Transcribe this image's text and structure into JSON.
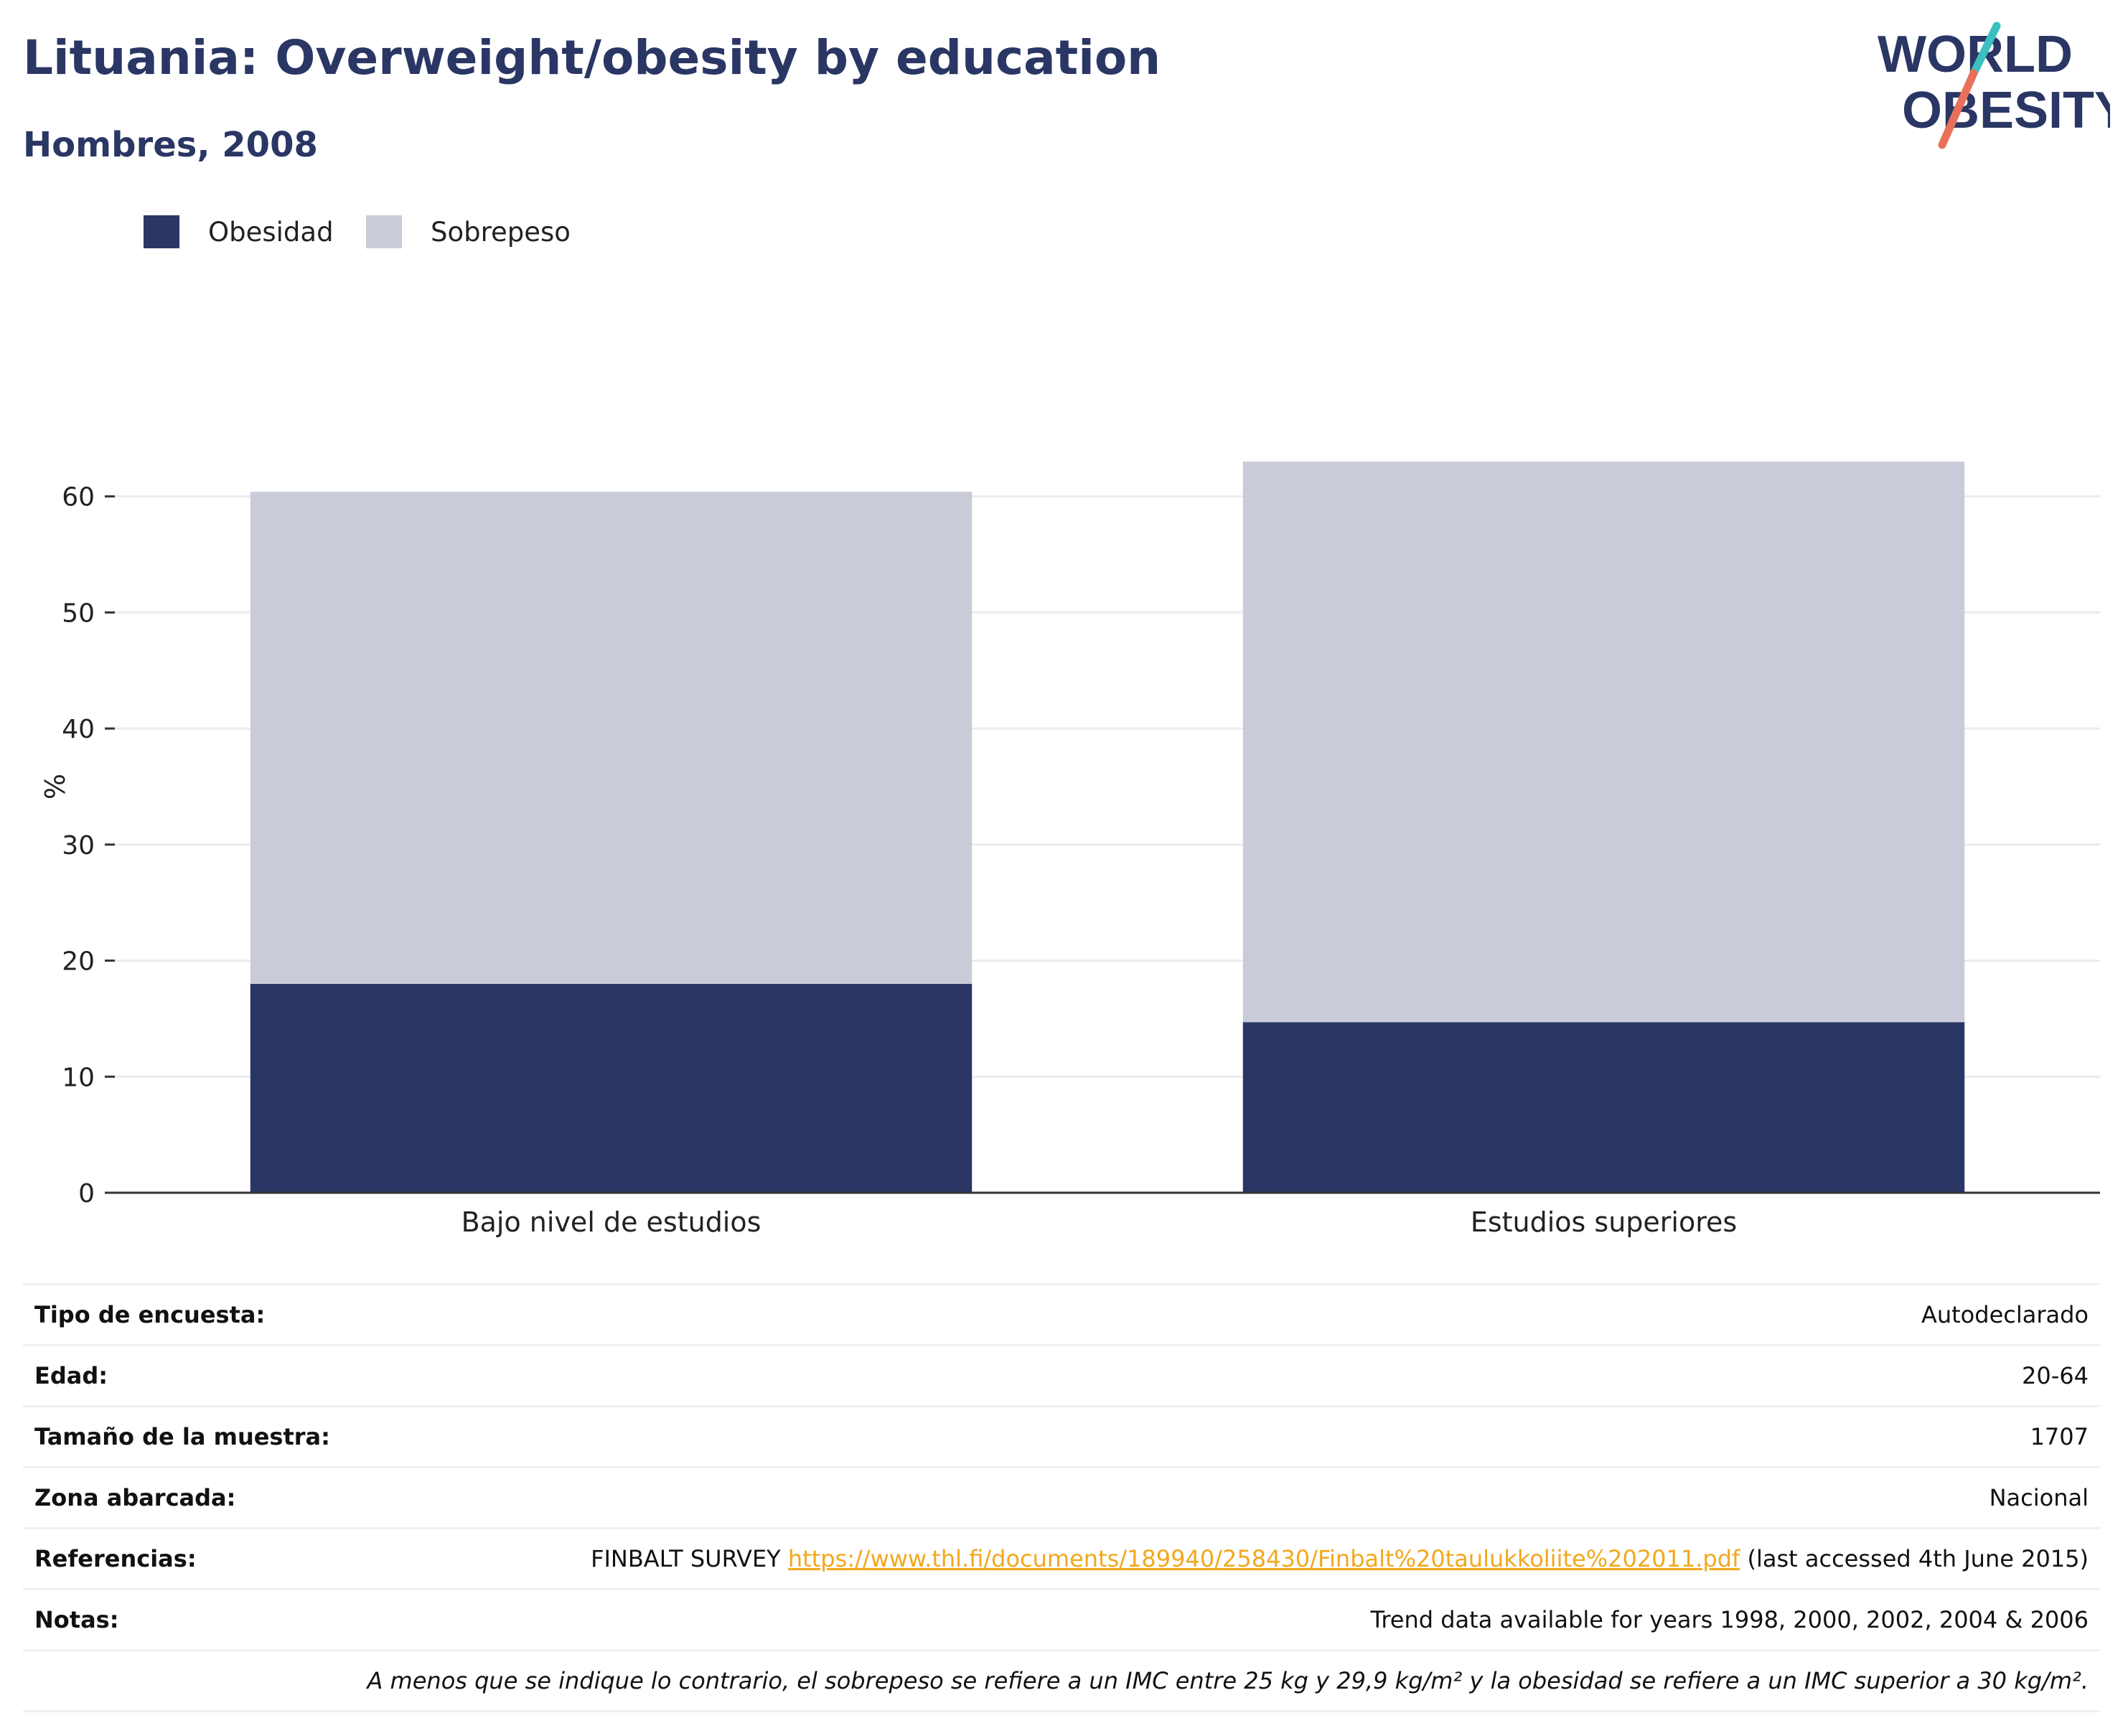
{
  "header": {
    "title": "Lituania: Overweight/obesity by education",
    "subtitle": "Hombres, 2008"
  },
  "logo": {
    "line1": "WORLD",
    "line2": "OBESITY"
  },
  "colors": {
    "obesity": "#2a3664",
    "overweight": "#c9ccd8",
    "axis": "#333333",
    "grid": "#e9ebf0",
    "link": "#f2a81d",
    "logo_teal": "#3cbfbf",
    "logo_coral": "#e8705a"
  },
  "chart_data": {
    "type": "bar",
    "stacked": true,
    "categories": [
      "Bajo nivel de estudios",
      "Estudios superiores"
    ],
    "series": [
      {
        "name": "Obesidad",
        "values": [
          18.0,
          14.7
        ]
      },
      {
        "name": "Sobrepeso",
        "values": [
          42.4,
          48.3
        ]
      }
    ],
    "ylabel": "%",
    "ylim": [
      0,
      70
    ],
    "yticks": [
      0,
      10,
      20,
      30,
      40,
      50,
      60
    ],
    "grid": true,
    "legend_position": "top-left"
  },
  "info": {
    "rows": [
      {
        "key": "Tipo de encuesta:",
        "value": "Autodeclarado"
      },
      {
        "key": "Edad:",
        "value": "20-64"
      },
      {
        "key": "Tamaño de la muestra:",
        "value": "1707"
      },
      {
        "key": "Zona abarcada:",
        "value": "Nacional"
      }
    ],
    "references": {
      "key": "Referencias:",
      "prefix": "FINBALT SURVEY ",
      "link": "https://www.thl.fi/documents/189940/258430/Finbalt%20taulukkoliite%202011.pdf",
      "suffix": " (last accessed 4th June 2015)"
    },
    "notes": {
      "key": "Notas:",
      "value": "Trend data available for years 1998, 2000, 2002, 2004 & 2006"
    },
    "footnote": "A menos que se indique lo contrario, el sobrepeso se refiere a un IMC entre 25 kg y 29,9 kg/m² y la obesidad se refiere a un IMC superior a 30 kg/m²."
  }
}
